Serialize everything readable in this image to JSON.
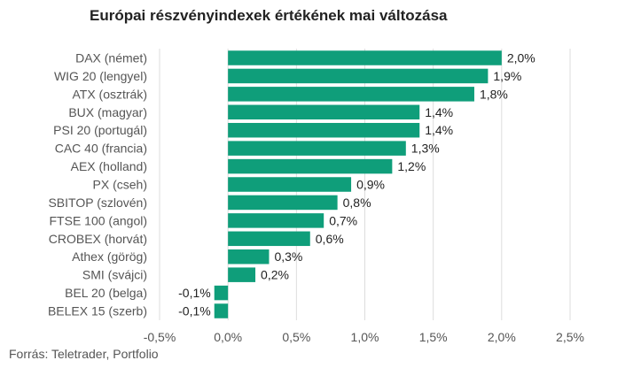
{
  "chart_data": {
    "type": "bar",
    "orientation": "horizontal",
    "title": "Európai részvényindexek értékének mai változása",
    "categories": [
      "DAX (német)",
      "WIG 20 (lengyel)",
      "ATX (osztrák)",
      "BUX (magyar)",
      "PSI 20 (portugál)",
      "CAC 40 (francia)",
      "AEX (holland)",
      "PX (cseh)",
      "SBITOP (szlovén)",
      "FTSE 100 (angol)",
      "CROBEX (horvát)",
      "Athex (görög)",
      "SMI (svájci)",
      "BEL 20 (belga)",
      "BELEX 15 (szerb)"
    ],
    "values": [
      2.0,
      1.9,
      1.8,
      1.4,
      1.4,
      1.3,
      1.2,
      0.9,
      0.8,
      0.7,
      0.6,
      0.3,
      0.2,
      -0.1,
      -0.1
    ],
    "value_labels": [
      "2,0%",
      "1,9%",
      "1,8%",
      "1,4%",
      "1,4%",
      "1,3%",
      "1,2%",
      "0,9%",
      "0,8%",
      "0,7%",
      "0,6%",
      "0,3%",
      "0,2%",
      "-0,1%",
      "-0,1%"
    ],
    "xlim": [
      -0.5,
      2.5
    ],
    "xticks": [
      -0.5,
      0.0,
      0.5,
      1.0,
      1.5,
      2.0,
      2.5
    ],
    "xtick_labels": [
      "-0,5%",
      "0,0%",
      "0,5%",
      "1,0%",
      "1,5%",
      "2,0%",
      "2,5%"
    ],
    "grid": "vertical",
    "bar_color": "#0f9e7a",
    "grid_color": "#dddddd"
  },
  "source": "Forrás: Teletrader, Portfolio"
}
